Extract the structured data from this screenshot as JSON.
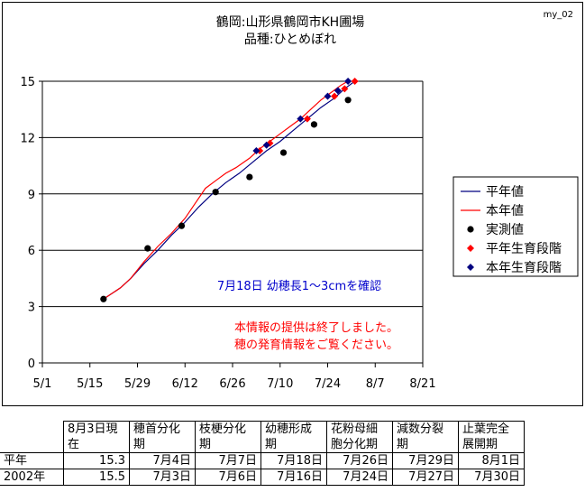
{
  "chart_data": {
    "type": "line",
    "title": [
      "鶴岡:山形県鶴岡市KH圃場",
      "品種:ひとめぼれ"
    ],
    "corner_label": "my_02",
    "annotation": "7月18日  幼穂長1～3cmを確認",
    "notice": [
      "本情報の提供は終了しました。",
      "穂の発育情報をご覧ください。"
    ],
    "x_ticks": [
      "5/1",
      "5/15",
      "5/29",
      "6/12",
      "6/26",
      "7/10",
      "7/24",
      "8/7",
      "8/21"
    ],
    "xlim": [
      "5/1",
      "8/21"
    ],
    "y_ticks": [
      "0",
      "3",
      "6",
      "9",
      "12",
      "15"
    ],
    "ylim": [
      0,
      15
    ],
    "grid": true,
    "legend_position": "right",
    "legend": [
      {
        "label": "平年値",
        "color": "#000080",
        "marker": "line"
      },
      {
        "label": "本年値",
        "color": "#ff0000",
        "marker": "line"
      },
      {
        "label": "実測値",
        "color": "#000000",
        "marker": "circle"
      },
      {
        "label": "平年生育段階",
        "color": "#ff0000",
        "marker": "diamond"
      },
      {
        "label": "本年生育段階",
        "color": "#000080",
        "marker": "diamond"
      }
    ],
    "series": [
      {
        "name": "平年値",
        "color": "#000080",
        "points": [
          [
            "5/19",
            3.4
          ],
          [
            "5/24",
            4.0
          ],
          [
            "5/27",
            4.5
          ],
          [
            "5/31",
            5.3
          ],
          [
            "6/4",
            6.0
          ],
          [
            "6/8",
            6.8
          ],
          [
            "6/12",
            7.5
          ],
          [
            "6/16",
            8.3
          ],
          [
            "6/20",
            9.0
          ],
          [
            "6/24",
            9.6
          ],
          [
            "6/28",
            10.1
          ],
          [
            "7/2",
            10.7
          ],
          [
            "7/6",
            11.3
          ],
          [
            "7/10",
            11.8
          ],
          [
            "7/14",
            12.4
          ],
          [
            "7/18",
            13.0
          ],
          [
            "7/22",
            13.6
          ],
          [
            "7/26",
            14.1
          ],
          [
            "7/29",
            14.6
          ],
          [
            "8/1",
            15.0
          ]
        ]
      },
      {
        "name": "本年値",
        "color": "#ff0000",
        "points": [
          [
            "5/19",
            3.4
          ],
          [
            "5/24",
            4.0
          ],
          [
            "5/27",
            4.5
          ],
          [
            "5/31",
            5.4
          ],
          [
            "6/4",
            6.2
          ],
          [
            "6/8",
            6.9
          ],
          [
            "6/12",
            7.7
          ],
          [
            "6/15",
            8.5
          ],
          [
            "6/18",
            9.3
          ],
          [
            "6/21",
            9.7
          ],
          [
            "6/24",
            10.1
          ],
          [
            "6/27",
            10.4
          ],
          [
            "7/1",
            10.9
          ],
          [
            "7/4",
            11.4
          ],
          [
            "7/7",
            11.8
          ],
          [
            "7/10",
            12.2
          ],
          [
            "7/13",
            12.6
          ],
          [
            "7/16",
            13.0
          ],
          [
            "7/19",
            13.5
          ],
          [
            "7/22",
            14.0
          ],
          [
            "7/25",
            14.4
          ],
          [
            "7/28",
            14.8
          ],
          [
            "7/30",
            15.0
          ]
        ]
      },
      {
        "name": "実測値",
        "color": "#000000",
        "points": [
          [
            "5/19",
            3.4
          ],
          [
            "6/1",
            6.1
          ],
          [
            "6/11",
            7.3
          ],
          [
            "6/21",
            9.1
          ],
          [
            "7/1",
            9.9
          ],
          [
            "7/11",
            11.2
          ],
          [
            "7/20",
            12.7
          ],
          [
            "7/30",
            14.0
          ]
        ]
      },
      {
        "name": "平年生育段階",
        "color": "#ff0000",
        "points": [
          [
            "7/4",
            11.3
          ],
          [
            "7/7",
            11.7
          ],
          [
            "7/18",
            13.0
          ],
          [
            "7/26",
            14.2
          ],
          [
            "7/29",
            14.6
          ],
          [
            "8/1",
            15.0
          ]
        ]
      },
      {
        "name": "本年生育段階",
        "color": "#000080",
        "points": [
          [
            "7/3",
            11.3
          ],
          [
            "7/6",
            11.6
          ],
          [
            "7/16",
            13.0
          ],
          [
            "7/24",
            14.2
          ],
          [
            "7/27",
            14.5
          ],
          [
            "7/30",
            15.0
          ]
        ]
      }
    ]
  },
  "stage_table": {
    "headers": [
      "8月3日現在",
      "穂首分化期",
      "枝梗分化期",
      "幼穂形成期",
      "花粉母細胞分化期",
      "減数分裂期",
      "止葉完全展開期"
    ],
    "rows": [
      {
        "label": "平年",
        "value": "15.3",
        "dates": [
          "7月4日",
          "7月7日",
          "7月18日",
          "7月26日",
          "7月29日",
          "8月1日"
        ]
      },
      {
        "label": "2002年",
        "value": "15.5",
        "dates": [
          "7月3日",
          "7月6日",
          "7月16日",
          "7月24日",
          "7月27日",
          "7月30日"
        ]
      }
    ]
  }
}
